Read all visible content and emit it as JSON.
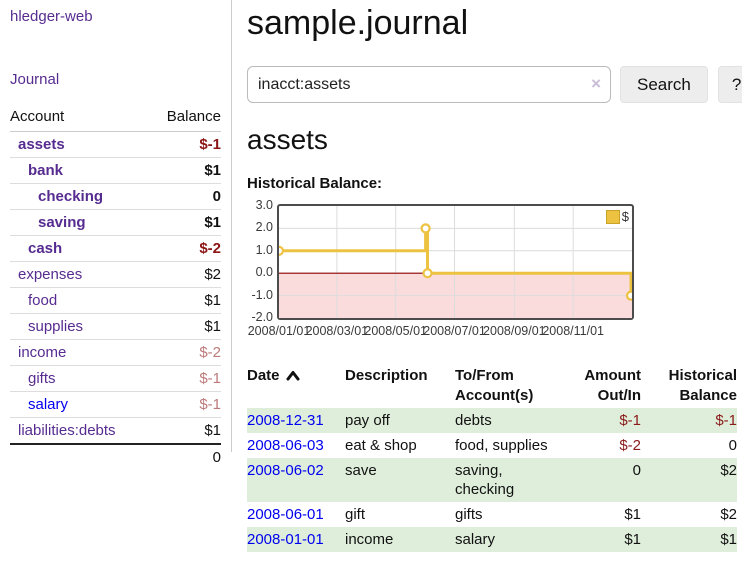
{
  "sidebar": {
    "app_title": "hledger-web",
    "journal_label": "Journal",
    "accounts_table": {
      "headers": {
        "account": "Account",
        "balance": "Balance"
      },
      "rows": [
        {
          "name": "assets",
          "depth": 1,
          "bold": true,
          "balance": "$-1",
          "neg": "strong",
          "link_color": "purple"
        },
        {
          "name": "bank",
          "depth": 2,
          "bold": true,
          "balance": "$1",
          "neg": "none",
          "link_color": "purple"
        },
        {
          "name": "checking",
          "depth": 3,
          "bold": true,
          "balance": "0",
          "neg": "none",
          "link_color": "purple"
        },
        {
          "name": "saving",
          "depth": 3,
          "bold": true,
          "balance": "$1",
          "neg": "none",
          "link_color": "purple"
        },
        {
          "name": "cash",
          "depth": 2,
          "bold": true,
          "balance": "$-2",
          "neg": "strong",
          "link_color": "purple"
        },
        {
          "name": "expenses",
          "depth": 1,
          "bold": false,
          "balance": "$2",
          "neg": "none",
          "link_color": "purple"
        },
        {
          "name": "food",
          "depth": 2,
          "bold": false,
          "balance": "$1",
          "neg": "none",
          "link_color": "purple"
        },
        {
          "name": "supplies",
          "depth": 2,
          "bold": false,
          "balance": "$1",
          "neg": "none",
          "link_color": "purple"
        },
        {
          "name": "income",
          "depth": 1,
          "bold": false,
          "balance": "$-2",
          "neg": "faded",
          "link_color": "purple"
        },
        {
          "name": "gifts",
          "depth": 2,
          "bold": false,
          "balance": "$-1",
          "neg": "faded",
          "link_color": "purple"
        },
        {
          "name": "salary",
          "depth": 2,
          "bold": false,
          "balance": "$-1",
          "neg": "faded",
          "link_color": "blue"
        },
        {
          "name": "liabilities:debts",
          "depth": 1,
          "bold": false,
          "balance": "$1",
          "neg": "none",
          "link_color": "purple"
        }
      ],
      "total": "0"
    }
  },
  "main": {
    "title": "sample.journal",
    "search": {
      "value": "inacct:assets",
      "clear_icon": "×",
      "button_label": "Search",
      "help_label": "?"
    },
    "account_heading": "assets",
    "chart_heading": "Historical Balance:"
  },
  "chart_data": {
    "type": "line",
    "style": "step",
    "title": "Historical Balance:",
    "series": [
      {
        "name": "$",
        "color": "#EDC240",
        "points": [
          {
            "date": "2008/01/01",
            "day": 0,
            "value": 1
          },
          {
            "date": "2008/06/01",
            "day": 152,
            "value": 2
          },
          {
            "date": "2008/06/03",
            "day": 154,
            "value": 0
          },
          {
            "date": "2008/12/31",
            "day": 365,
            "value": -1
          }
        ]
      }
    ],
    "x_ticks": [
      {
        "day": 0,
        "label": "2008/01/01"
      },
      {
        "day": 60,
        "label": "2008/03/01"
      },
      {
        "day": 121,
        "label": "2008/05/01"
      },
      {
        "day": 182,
        "label": "2008/07/01"
      },
      {
        "day": 244,
        "label": "2008/09/01"
      },
      {
        "day": 305,
        "label": "2008/11/01"
      }
    ],
    "y_ticks": [
      {
        "v": 3,
        "label": "3.0"
      },
      {
        "v": 2,
        "label": "2.0"
      },
      {
        "v": 1,
        "label": "1.0"
      },
      {
        "v": 0,
        "label": "0.0"
      },
      {
        "v": -1,
        "label": "-1.0"
      },
      {
        "v": -2,
        "label": "-2.0"
      }
    ],
    "ylim": [
      -2,
      3
    ],
    "xlim_days": [
      0,
      366
    ],
    "grid": true,
    "negative_region_color": "#fbdcdc",
    "zero_line_color": "#8b0000",
    "grid_color": "#dcdcdc",
    "legend": {
      "position": "top-right",
      "label": "$",
      "swatch_color": "#EDC240"
    }
  },
  "register_table": {
    "headers": {
      "date": "Date",
      "description": "Description",
      "tofrom_line1": "To/From",
      "tofrom_line2": "Account(s)",
      "amount_line1": "Amount",
      "amount_line2": "Out/In",
      "balance_line1": "Historical",
      "balance_line2": "Balance"
    },
    "rows": [
      {
        "date": "2008-12-31",
        "description": "pay off",
        "accounts": "debts",
        "amount": "$-1",
        "amount_neg": true,
        "balance": "$-1",
        "balance_neg": true,
        "shaded": true
      },
      {
        "date": "2008-06-03",
        "description": "eat & shop",
        "accounts": "food, supplies",
        "amount": "$-2",
        "amount_neg": true,
        "balance": "0",
        "balance_neg": false,
        "shaded": false
      },
      {
        "date": "2008-06-02",
        "description": "save",
        "accounts": "saving, checking",
        "amount": "0",
        "amount_neg": false,
        "balance": "$2",
        "balance_neg": false,
        "shaded": true
      },
      {
        "date": "2008-06-01",
        "description": "gift",
        "accounts": "gifts",
        "amount": "$1",
        "amount_neg": false,
        "balance": "$2",
        "balance_neg": false,
        "shaded": false
      },
      {
        "date": "2008-01-01",
        "description": "income",
        "accounts": "salary",
        "amount": "$1",
        "amount_neg": false,
        "balance": "$1",
        "balance_neg": false,
        "shaded": true
      }
    ]
  }
}
